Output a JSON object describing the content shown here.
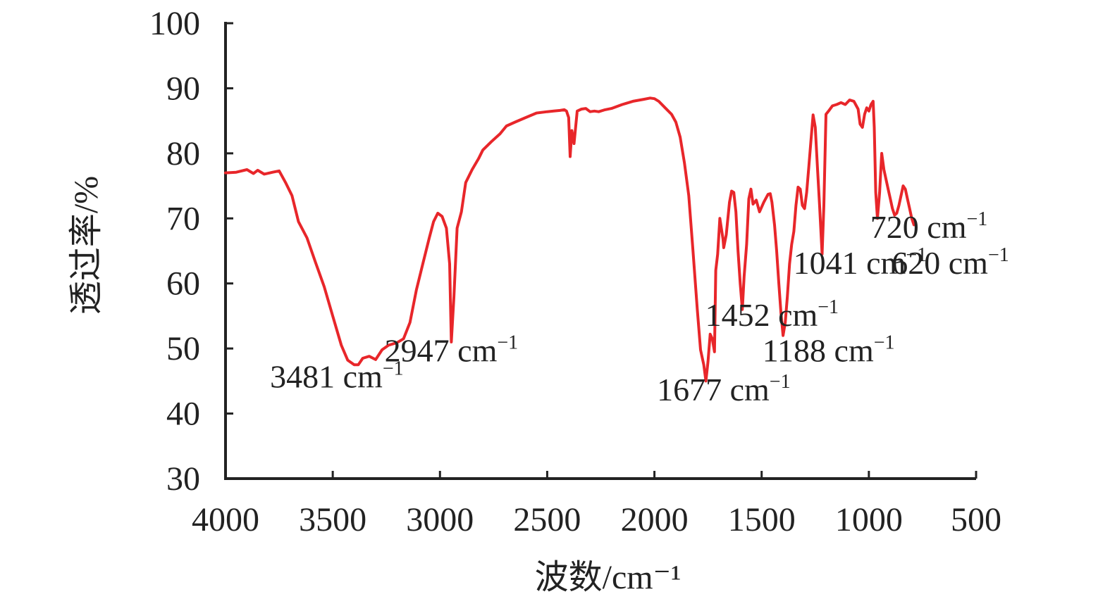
{
  "chart_data": {
    "type": "line",
    "xlabel": "波数/cm⁻¹",
    "ylabel": "透过率/%",
    "xlim": [
      4000,
      500
    ],
    "ylim": [
      30,
      100
    ],
    "x_ticks": [
      4000,
      3500,
      3000,
      2500,
      2000,
      1500,
      1000,
      500
    ],
    "y_ticks": [
      30,
      40,
      50,
      60,
      70,
      80,
      90,
      100
    ],
    "x_tick_labels": [
      "4000",
      "3500",
      "3000",
      "2500",
      "2000",
      "1500",
      "1000",
      "500"
    ],
    "y_tick_labels": [
      "30",
      "40",
      "50",
      "60",
      "70",
      "80",
      "90",
      "100"
    ],
    "grid": false,
    "legend": "none",
    "series": [
      {
        "color": "#e8262a",
        "points": [
          [
            4000,
            77
          ],
          [
            3950,
            77.1
          ],
          [
            3900,
            77.5
          ],
          [
            3870,
            76.9
          ],
          [
            3850,
            77.4
          ],
          [
            3820,
            76.8
          ],
          [
            3780,
            77.1
          ],
          [
            3750,
            77.3
          ],
          [
            3720,
            75.5
          ],
          [
            3690,
            73.5
          ],
          [
            3660,
            69.5
          ],
          [
            3620,
            67
          ],
          [
            3580,
            63.2
          ],
          [
            3540,
            59.5
          ],
          [
            3500,
            55
          ],
          [
            3460,
            50.5
          ],
          [
            3430,
            48.2
          ],
          [
            3400,
            47.5
          ],
          [
            3381,
            47.5
          ],
          [
            3360,
            48.5
          ],
          [
            3330,
            48.8
          ],
          [
            3300,
            48.3
          ],
          [
            3270,
            49.8
          ],
          [
            3240,
            50.5
          ],
          [
            3200,
            50.9
          ],
          [
            3170,
            51.5
          ],
          [
            3140,
            54
          ],
          [
            3110,
            59
          ],
          [
            3080,
            63
          ],
          [
            3050,
            67
          ],
          [
            3030,
            69.5
          ],
          [
            3010,
            70.8
          ],
          [
            2990,
            70.3
          ],
          [
            2970,
            68.5
          ],
          [
            2955,
            63
          ],
          [
            2947,
            51
          ],
          [
            2935,
            58
          ],
          [
            2920,
            68.5
          ],
          [
            2900,
            71
          ],
          [
            2880,
            75.5
          ],
          [
            2850,
            77.5
          ],
          [
            2820,
            79.2
          ],
          [
            2800,
            80.5
          ],
          [
            2760,
            81.8
          ],
          [
            2720,
            83
          ],
          [
            2690,
            84.2
          ],
          [
            2650,
            84.8
          ],
          [
            2600,
            85.5
          ],
          [
            2550,
            86.2
          ],
          [
            2500,
            86.4
          ],
          [
            2470,
            86.5
          ],
          [
            2440,
            86.6
          ],
          [
            2420,
            86.7
          ],
          [
            2410,
            86.5
          ],
          [
            2400,
            85.5
          ],
          [
            2393,
            79.5
          ],
          [
            2385,
            83.5
          ],
          [
            2375,
            81.5
          ],
          [
            2360,
            86.5
          ],
          [
            2340,
            86.8
          ],
          [
            2320,
            86.9
          ],
          [
            2300,
            86.4
          ],
          [
            2280,
            86.5
          ],
          [
            2260,
            86.4
          ],
          [
            2230,
            86.7
          ],
          [
            2200,
            86.9
          ],
          [
            2150,
            87.5
          ],
          [
            2100,
            88
          ],
          [
            2050,
            88.3
          ],
          [
            2020,
            88.5
          ],
          [
            2000,
            88.4
          ],
          [
            1980,
            88
          ],
          [
            1950,
            87
          ],
          [
            1920,
            86
          ],
          [
            1900,
            84.8
          ],
          [
            1880,
            82.5
          ],
          [
            1860,
            78.5
          ],
          [
            1840,
            73.5
          ],
          [
            1820,
            65
          ],
          [
            1800,
            56
          ],
          [
            1785,
            49.8
          ],
          [
            1770,
            47.5
          ],
          [
            1760,
            45
          ],
          [
            1750,
            48
          ],
          [
            1740,
            52.2
          ],
          [
            1730,
            51.5
          ],
          [
            1720,
            49.5
          ],
          [
            1714,
            62
          ],
          [
            1705,
            64.5
          ],
          [
            1695,
            70
          ],
          [
            1680,
            66.8
          ],
          [
            1677,
            65.5
          ],
          [
            1665,
            67.5
          ],
          [
            1650,
            72.5
          ],
          [
            1640,
            74.2
          ],
          [
            1630,
            74
          ],
          [
            1620,
            71
          ],
          [
            1610,
            65
          ],
          [
            1600,
            60
          ],
          [
            1590,
            56
          ],
          [
            1582,
            61
          ],
          [
            1570,
            66
          ],
          [
            1560,
            73
          ],
          [
            1550,
            74.5
          ],
          [
            1540,
            72.2
          ],
          [
            1525,
            72.8
          ],
          [
            1510,
            71
          ],
          [
            1490,
            72.5
          ],
          [
            1470,
            73.7
          ],
          [
            1460,
            73.8
          ],
          [
            1452,
            72.5
          ],
          [
            1440,
            69
          ],
          [
            1430,
            65
          ],
          [
            1420,
            60
          ],
          [
            1410,
            55.5
          ],
          [
            1400,
            52
          ],
          [
            1390,
            54
          ],
          [
            1380,
            58
          ],
          [
            1370,
            63
          ],
          [
            1360,
            66
          ],
          [
            1350,
            68
          ],
          [
            1340,
            72
          ],
          [
            1330,
            74.8
          ],
          [
            1320,
            74.5
          ],
          [
            1310,
            72
          ],
          [
            1300,
            71.5
          ],
          [
            1290,
            74
          ],
          [
            1280,
            78
          ],
          [
            1270,
            82
          ],
          [
            1260,
            85.9
          ],
          [
            1250,
            84
          ],
          [
            1240,
            78
          ],
          [
            1230,
            72
          ],
          [
            1222,
            67
          ],
          [
            1218,
            64.5
          ],
          [
            1210,
            72
          ],
          [
            1200,
            86
          ],
          [
            1188,
            86.5
          ],
          [
            1170,
            87.3
          ],
          [
            1150,
            87.5
          ],
          [
            1130,
            87.8
          ],
          [
            1110,
            87.5
          ],
          [
            1090,
            88.2
          ],
          [
            1070,
            88
          ],
          [
            1050,
            86.8
          ],
          [
            1041,
            84.5
          ],
          [
            1030,
            84
          ],
          [
            1020,
            86
          ],
          [
            1010,
            87
          ],
          [
            1000,
            86.5
          ],
          [
            990,
            87.5
          ],
          [
            980,
            88
          ],
          [
            975,
            84
          ],
          [
            968,
            74
          ],
          [
            960,
            70
          ],
          [
            950,
            74
          ],
          [
            940,
            80
          ],
          [
            930,
            77.5
          ],
          [
            920,
            76
          ],
          [
            910,
            74.5
          ],
          [
            900,
            73
          ],
          [
            890,
            71.5
          ],
          [
            880,
            70.5
          ],
          [
            870,
            70.8
          ],
          [
            860,
            72
          ],
          [
            850,
            73.5
          ],
          [
            840,
            75
          ],
          [
            830,
            74.5
          ],
          [
            820,
            73
          ],
          [
            810,
            71.5
          ],
          [
            800,
            70
          ],
          [
            790,
            69
          ]
        ]
      }
    ],
    "annotations": [
      {
        "base": "3481 cm",
        "sup": "−1",
        "at": [
          3481,
          44
        ]
      },
      {
        "base": "2947 cm",
        "sup": "−1",
        "at": [
          2947,
          48
        ]
      },
      {
        "base": "1677 cm",
        "sup": "−1",
        "at": [
          1677,
          42
        ]
      },
      {
        "base": "1452 cm",
        "sup": "−1",
        "at": [
          1452,
          53.5
        ]
      },
      {
        "base": "1188 cm",
        "sup": "−1",
        "at": [
          1188,
          48
        ]
      },
      {
        "base": "1041 cm",
        "sup": "−1",
        "at": [
          1041,
          61.5
        ]
      },
      {
        "base": "720 cm",
        "sup": "−1",
        "at": [
          720,
          67
        ]
      },
      {
        "base": "620 cm",
        "sup": "−1",
        "at": [
          620,
          61.5
        ]
      }
    ]
  }
}
